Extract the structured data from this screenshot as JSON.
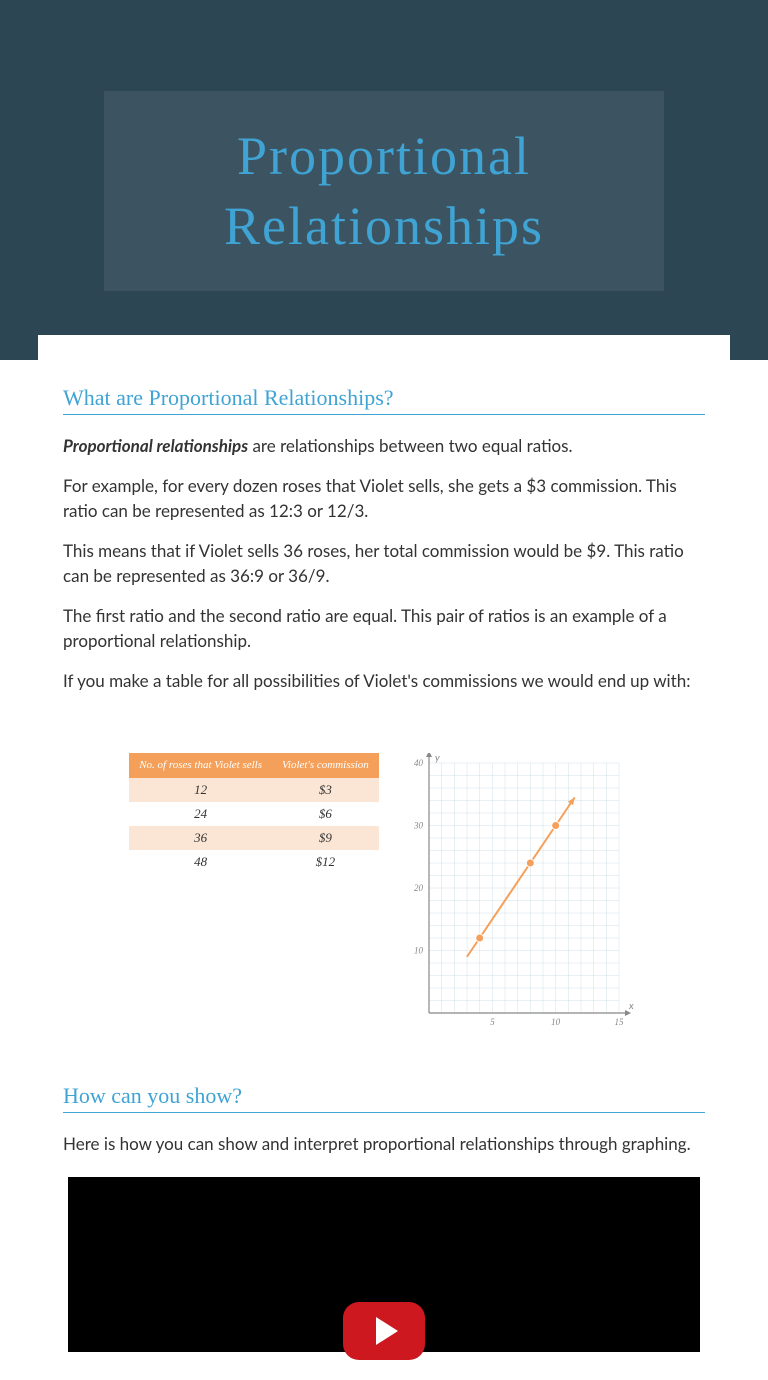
{
  "header": {
    "title": "Proportional Relationships",
    "title_color": "#3fa3d4",
    "bg_color": "#2c4654"
  },
  "section1": {
    "heading": "What are Proportional Relationships?",
    "paragraphs": [
      {
        "lead": "Proportional relationships",
        "rest": " are relationships between two equal ratios."
      },
      {
        "text": "For example, for every dozen roses that Violet sells, she gets a $3 commission. This ratio can be represented as 12:3 or 12/3."
      },
      {
        "text": "This means that if Violet sells 36 roses, her total commission would be $9. This ratio can be represented as 36:9 or 36/9."
      },
      {
        "text": "The first ratio and the second ratio are equal. This pair of ratios is an example of a proportional relationship."
      },
      {
        "text": "If you make a table for all possibilities of Violet's commissions we would end up with:"
      }
    ]
  },
  "table": {
    "headers": [
      "No. of roses that Violet sells",
      "Violet's commission"
    ],
    "rows": [
      [
        "12",
        "$3"
      ],
      [
        "24",
        "$6"
      ],
      [
        "36",
        "$9"
      ],
      [
        "48",
        "$12"
      ]
    ],
    "header_bg": "#f5a05a",
    "odd_bg": "#fbe6d6",
    "even_bg": "#ffffff"
  },
  "chart": {
    "type": "scatter-line",
    "x_axis": {
      "label": "x",
      "min": 0,
      "max": 15,
      "tick_step": 5
    },
    "y_axis": {
      "label": "y",
      "min": 0,
      "max": 40,
      "tick_step": 10
    },
    "points": [
      {
        "x": 4,
        "y": 12
      },
      {
        "x": 8,
        "y": 24
      },
      {
        "x": 10,
        "y": 30
      }
    ],
    "line_color": "#f5a05a",
    "point_color": "#f5a05a",
    "grid_color": "#d0e0e8",
    "axis_color": "#888888",
    "label_color": "#888888",
    "label_fontsize": 9,
    "bg_color": "#ffffff",
    "line_width": 2,
    "point_radius": 4
  },
  "section2": {
    "heading": "How can you show?",
    "text": "Here is how you can show and interpret proportional relationships through graphing."
  },
  "video": {
    "play_bg": "#cc181e",
    "play_fg": "#ffffff"
  }
}
